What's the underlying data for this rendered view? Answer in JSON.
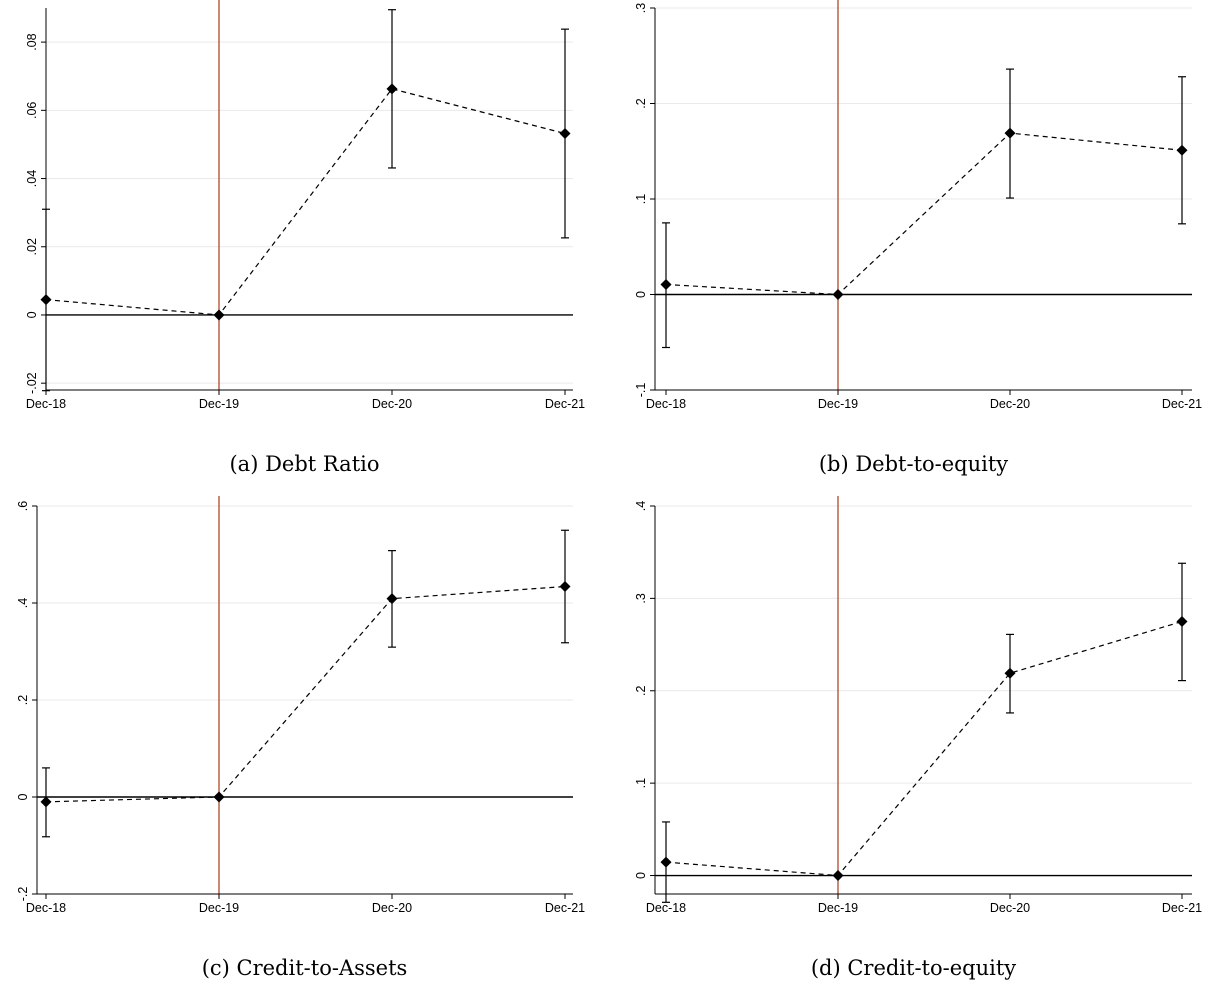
{
  "chart_data": [
    {
      "type": "line",
      "caption": "(a) Debt Ratio",
      "categories": [
        "Dec-18",
        "Dec-19",
        "Dec-20",
        "Dec-21"
      ],
      "values": [
        0.0045,
        0,
        0.0663,
        0.0532
      ],
      "ci_low": [
        -0.0222,
        0,
        0.0431,
        0.0226
      ],
      "ci_high": [
        0.031,
        0,
        0.0895,
        0.0838
      ],
      "yticks": [
        -0.02,
        0,
        0.02,
        0.04,
        0.06,
        0.08
      ],
      "ytick_labels": [
        "-.02",
        "0",
        ".02",
        ".04",
        ".06",
        ".08"
      ],
      "ylim": [
        -0.022,
        0.09
      ],
      "reference_line_category": "Dec-19",
      "colors": {
        "reference": "#b5573a",
        "grid": "#e9e9e9",
        "series": "#000000"
      }
    },
    {
      "type": "line",
      "caption": "(b) Debt-to-equity",
      "categories": [
        "Dec-18",
        "Dec-19",
        "Dec-20",
        "Dec-21"
      ],
      "values": [
        0.0105,
        0,
        0.169,
        0.151
      ],
      "ci_low": [
        -0.0555,
        0,
        0.101,
        0.074
      ],
      "ci_high": [
        0.075,
        0,
        0.236,
        0.228
      ],
      "yticks": [
        -0.1,
        0,
        0.1,
        0.2,
        0.3
      ],
      "ytick_labels": [
        "-.1",
        "0",
        ".1",
        ".2",
        ".3"
      ],
      "ylim": [
        -0.1,
        0.3
      ],
      "reference_line_category": "Dec-19",
      "colors": {
        "reference": "#b5573a",
        "grid": "#e9e9e9",
        "series": "#000000"
      }
    },
    {
      "type": "line",
      "caption": "(c) Credit-to-Assets",
      "categories": [
        "Dec-18",
        "Dec-19",
        "Dec-20",
        "Dec-21"
      ],
      "values": [
        -0.01,
        0,
        0.409,
        0.434
      ],
      "ci_low": [
        -0.082,
        0,
        0.309,
        0.318
      ],
      "ci_high": [
        0.06,
        0,
        0.508,
        0.55
      ],
      "yticks": [
        -0.2,
        0,
        0.2,
        0.4,
        0.6
      ],
      "ytick_labels": [
        "-.2",
        "0",
        ".2",
        ".4",
        ".6"
      ],
      "ylim": [
        -0.2,
        0.6
      ],
      "reference_line_category": "Dec-19",
      "colors": {
        "reference": "#b5573a",
        "grid": "#e9e9e9",
        "series": "#000000"
      }
    },
    {
      "type": "line",
      "caption": "(d) Credit-to-equity",
      "categories": [
        "Dec-18",
        "Dec-19",
        "Dec-20",
        "Dec-21"
      ],
      "values": [
        0.0145,
        0,
        0.219,
        0.275
      ],
      "ci_low": [
        -0.029,
        0,
        0.176,
        0.211
      ],
      "ci_high": [
        0.058,
        0,
        0.261,
        0.338
      ],
      "yticks": [
        0,
        0.1,
        0.2,
        0.3,
        0.4
      ],
      "ytick_labels": [
        "0",
        ".1",
        ".2",
        ".3",
        ".4"
      ],
      "ylim": [
        -0.02,
        0.4
      ],
      "reference_line_category": "Dec-19",
      "colors": {
        "reference": "#b5573a",
        "grid": "#e9e9e9",
        "series": "#000000"
      }
    }
  ]
}
